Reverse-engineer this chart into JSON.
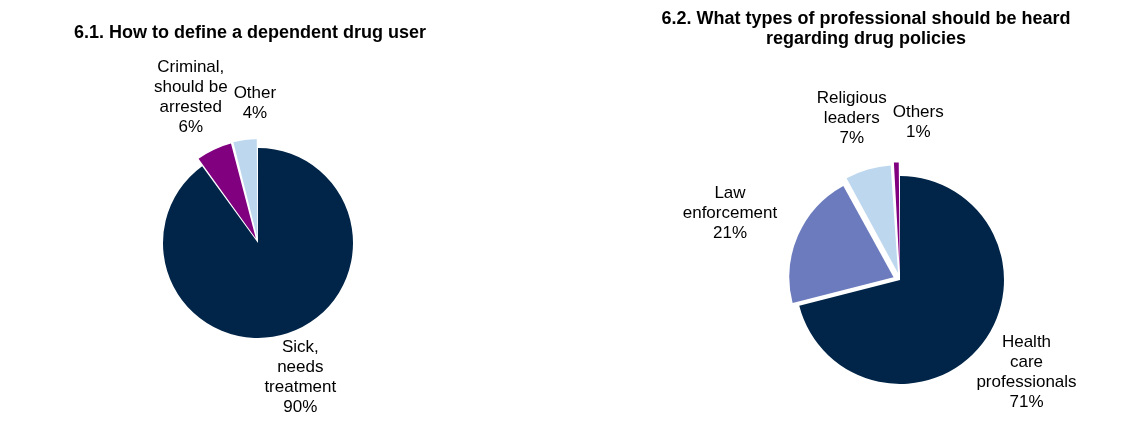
{
  "chart_data": [
    {
      "type": "pie",
      "title": "6.1. How to define a dependent drug user",
      "categories": [
        "Sick, needs treatment",
        "Criminal, should be arrested",
        "Other"
      ],
      "values": [
        90,
        6,
        4
      ],
      "colors": [
        "#002548",
        "#800080",
        "#bdd7ee"
      ],
      "value_labels": [
        "90%",
        "6%",
        "4%"
      ],
      "legend": false
    },
    {
      "type": "pie",
      "title": "6.2. What types of professional should be heard regarding drug policies",
      "categories": [
        "Health care professionals",
        "Law enforcement",
        "Religious leaders",
        "Others"
      ],
      "values": [
        71,
        21,
        7,
        1
      ],
      "colors": [
        "#002548",
        "#6b7bbd",
        "#bdd7ee",
        "#800080"
      ],
      "value_labels": [
        "71%",
        "21%",
        "7%",
        "1%"
      ],
      "legend": false
    }
  ]
}
